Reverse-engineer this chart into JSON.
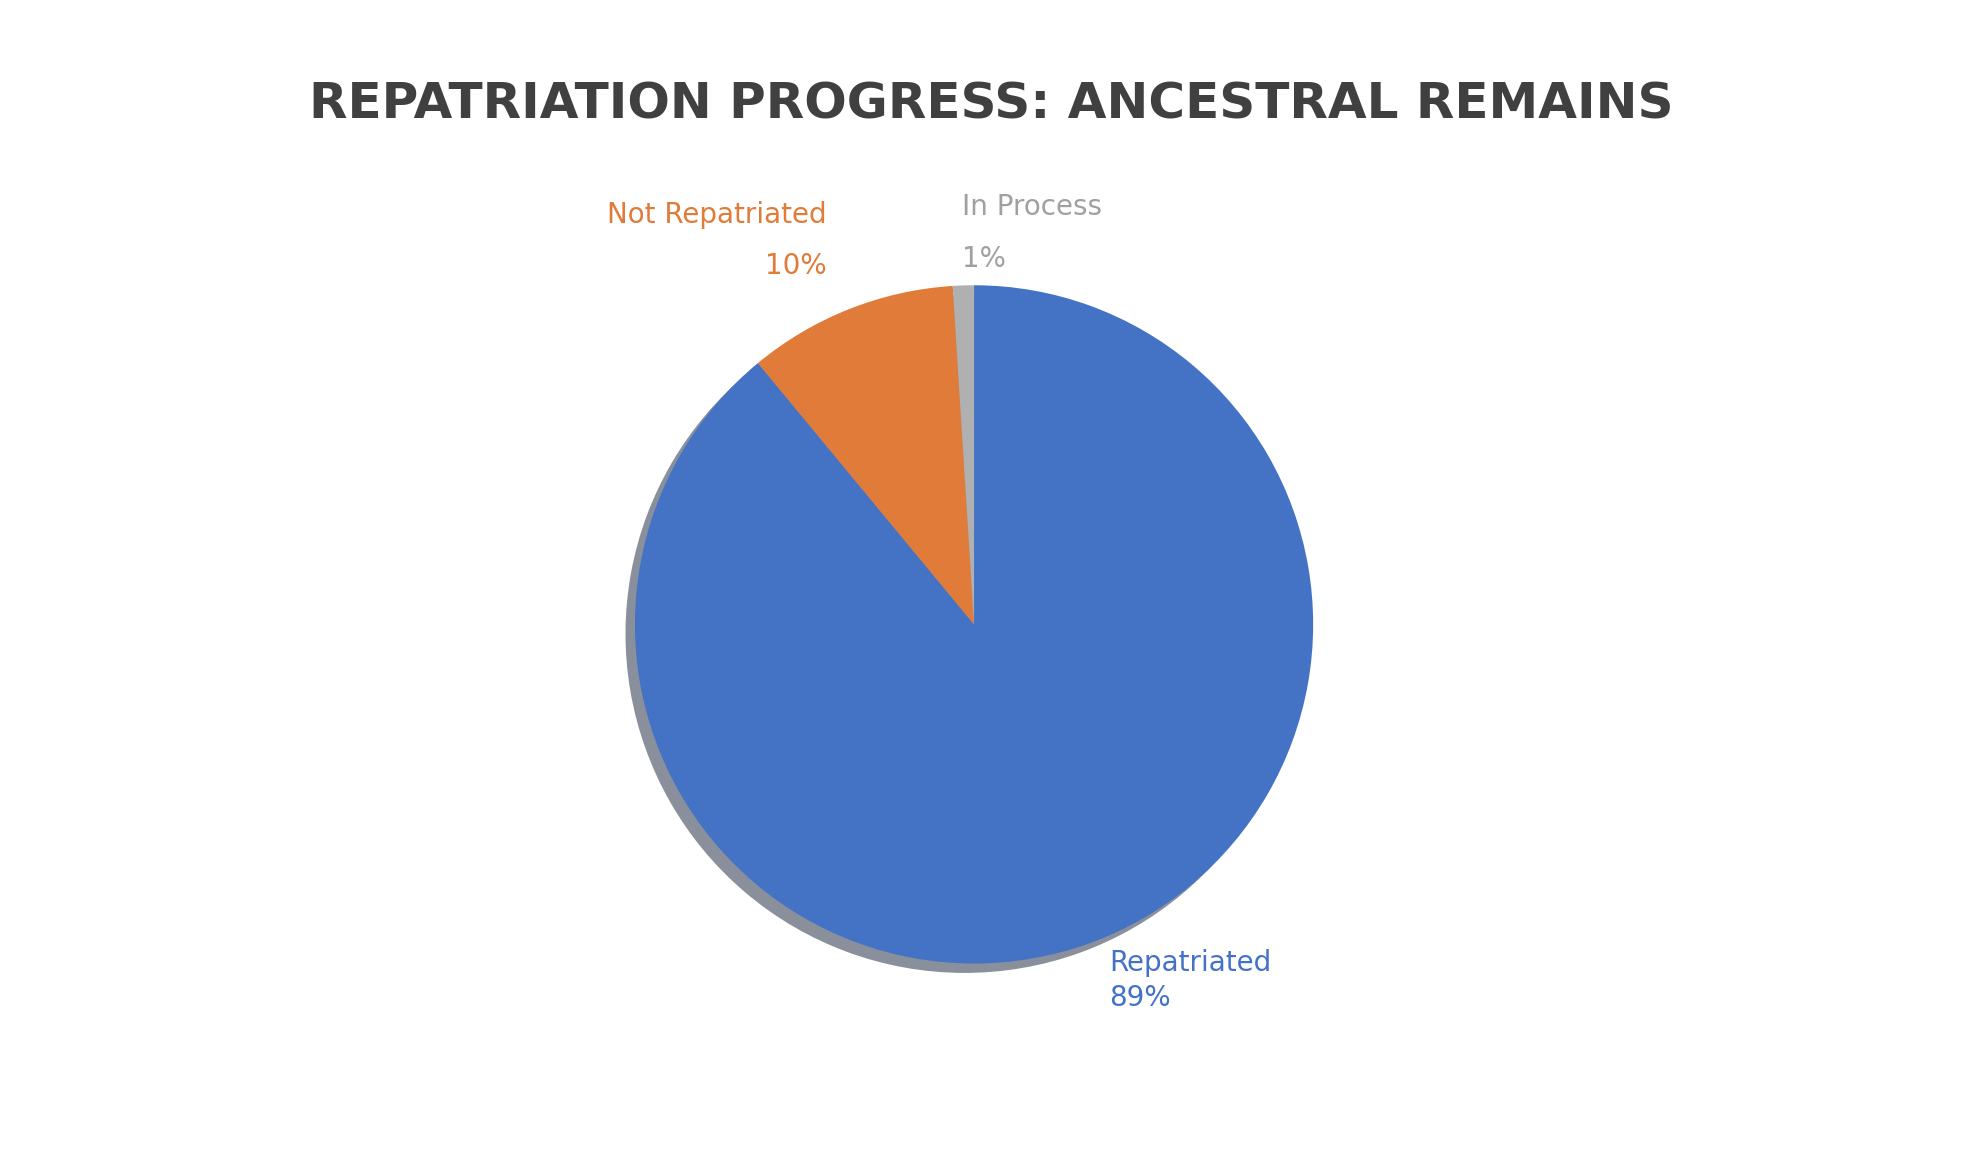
{
  "title": "REPATRIATION PROGRESS: ANCESTRAL REMAINS",
  "title_fontsize": 36,
  "title_color": "#404040",
  "title_fontweight": "bold",
  "slices": [
    89,
    10,
    1
  ],
  "labels": [
    "Repatriated",
    "Not Repatriated",
    "In Process"
  ],
  "label_fontsize": 20,
  "pct_fontsize": 20,
  "colors": [
    "#4472C4",
    "#E07B39",
    "#B0B0B0"
  ],
  "label_colors": [
    "#4472C4",
    "#E07B39",
    "#A0A0A0"
  ],
  "background_color": "#FFFFFF",
  "startangle": 90,
  "shadow": true
}
